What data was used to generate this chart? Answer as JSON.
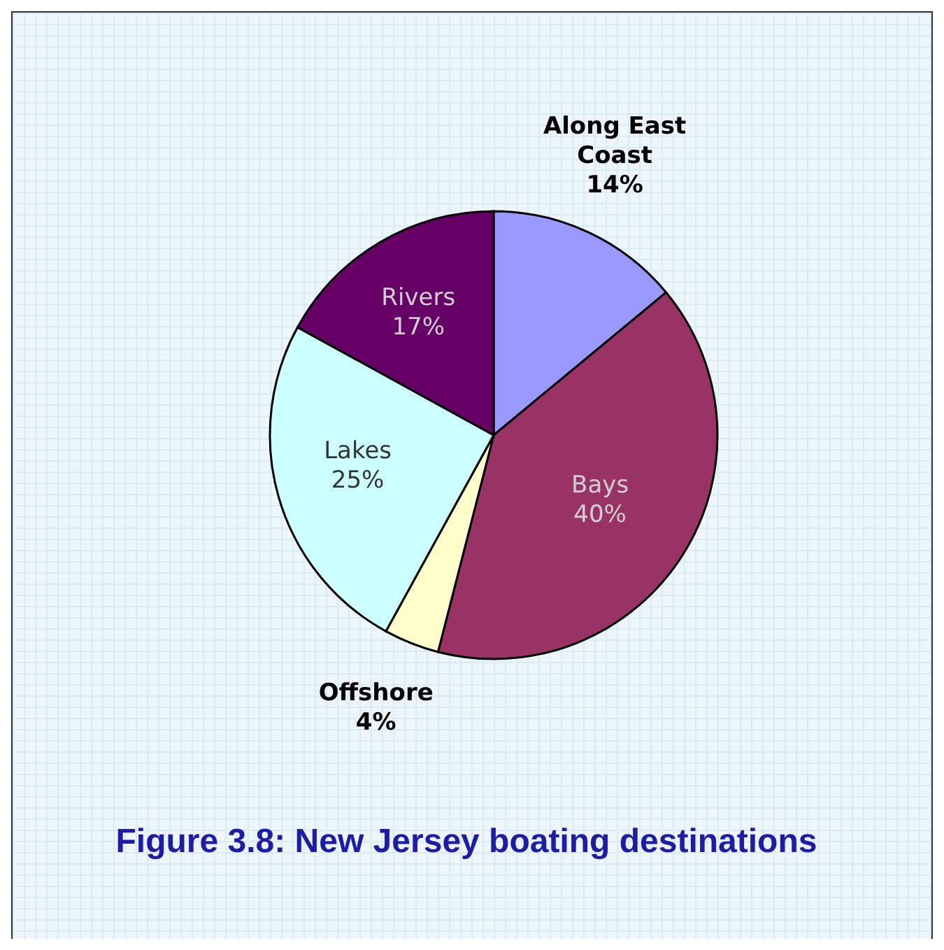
{
  "chart_data": {
    "type": "pie",
    "title": "Figure 3.8:  New Jersey boating destinations",
    "categories": [
      "Along East Coast",
      "Bays",
      "Offshore",
      "Lakes",
      "Rivers"
    ],
    "values": [
      14,
      40,
      4,
      25,
      17
    ],
    "value_labels": [
      "14%",
      "40%",
      "4%",
      "25%",
      "17%"
    ],
    "colors": [
      "#9999ff",
      "#993366",
      "#ffffcc",
      "#ccffff",
      "#660066"
    ],
    "legend": false
  }
}
